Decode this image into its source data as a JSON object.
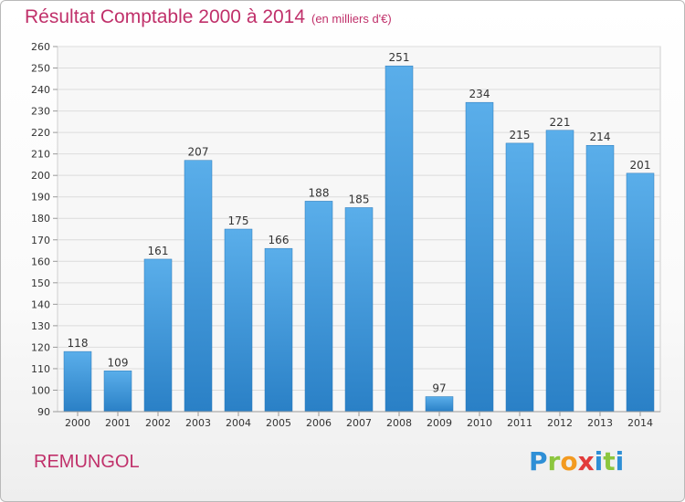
{
  "header": {
    "title": "Résultat Comptable 2000 à 2014",
    "subtitle": "(en milliers d'€)"
  },
  "commune": "REMUNGOL",
  "logo": {
    "text": "Proxiti"
  },
  "colors": {
    "title": "#c0306a",
    "bar_top": "#5aaeea",
    "bar_bottom": "#2a80c6"
  },
  "chart_data": {
    "type": "bar",
    "categories": [
      "2000",
      "2001",
      "2002",
      "2003",
      "2004",
      "2005",
      "2006",
      "2007",
      "2008",
      "2009",
      "2010",
      "2011",
      "2012",
      "2013",
      "2014"
    ],
    "values": [
      118,
      109,
      161,
      207,
      175,
      166,
      188,
      185,
      251,
      97,
      234,
      215,
      221,
      214,
      201
    ],
    "ylim": [
      90,
      260
    ],
    "yticks": [
      90,
      100,
      110,
      120,
      130,
      140,
      150,
      160,
      170,
      180,
      190,
      200,
      210,
      220,
      230,
      240,
      250,
      260
    ],
    "grid": true
  }
}
